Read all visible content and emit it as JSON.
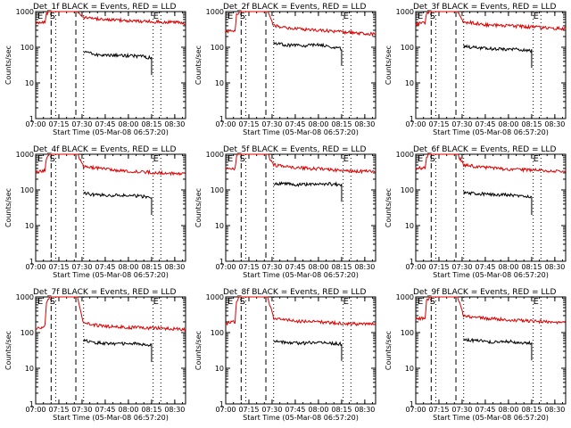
{
  "figure": {
    "background": "#ffffff",
    "axis_color": "#000000"
  },
  "chart_data": [
    {
      "type": "line",
      "title": "Det_1f BLACK = Events, RED = LLD",
      "xlabel": "Start Time (05-Mar-08 06:57:20)",
      "ylabel": "Counts/sec",
      "yscale": "log",
      "ylim": [
        1,
        1000
      ],
      "xlim": [
        "07:00",
        "08:37"
      ],
      "xticks": [
        "07:00",
        "07:15",
        "07:30",
        "07:45",
        "08:00",
        "08:15",
        "08:30"
      ],
      "yticks": [
        "1",
        "10",
        "100",
        "1000"
      ],
      "markers": [
        {
          "label": "E",
          "x": "07:00"
        },
        {
          "label": "S",
          "x": "07:09"
        },
        {
          "label": "E",
          "x": "08:16"
        }
      ],
      "vlines": {
        "dashed": [
          "07:10",
          "07:26"
        ],
        "dotted": [
          "07:13",
          "07:31",
          "08:16",
          "08:21"
        ]
      },
      "series": [
        {
          "name": "Events",
          "color": "#000000",
          "x": [
            "07:31",
            "07:40",
            "07:50",
            "08:00",
            "08:10",
            "08:15"
          ],
          "y": [
            75,
            62,
            60,
            58,
            55,
            50
          ]
        },
        {
          "name": "LLD",
          "color": "#dd0000",
          "x": [
            "07:00",
            "07:06",
            "07:07",
            "07:09",
            "07:10",
            "07:26",
            "07:27",
            "07:31",
            "07:45",
            "08:00",
            "08:15",
            "08:37"
          ],
          "y": [
            480,
            500,
            850,
            1000,
            1000,
            1000,
            1000,
            700,
            600,
            560,
            520,
            480
          ]
        }
      ]
    },
    {
      "type": "line",
      "title": "Det_2f BLACK = Events, RED = LLD",
      "xlabel": "Start Time (05-Mar-08 06:57:20)",
      "ylabel": "Counts/sec",
      "yscale": "log",
      "ylim": [
        1,
        1000
      ],
      "xlim": [
        "07:00",
        "08:37"
      ],
      "xticks": [
        "07:00",
        "07:15",
        "07:30",
        "07:45",
        "08:00",
        "08:15",
        "08:30"
      ],
      "yticks": [
        "1",
        "10",
        "100",
        "1000"
      ],
      "markers": [
        {
          "label": "E",
          "x": "07:00"
        },
        {
          "label": "S",
          "x": "07:09"
        },
        {
          "label": "E",
          "x": "08:16"
        }
      ],
      "vlines": {
        "dashed": [
          "07:10",
          "07:26"
        ],
        "dotted": [
          "07:13",
          "07:31",
          "08:16",
          "08:21"
        ]
      },
      "series": [
        {
          "name": "Events",
          "color": "#000000",
          "x": [
            "07:31",
            "07:40",
            "07:50",
            "08:00",
            "08:10",
            "08:15"
          ],
          "y": [
            130,
            115,
            108,
            120,
            100,
            90
          ]
        },
        {
          "name": "LLD",
          "color": "#dd0000",
          "x": [
            "07:00",
            "07:06",
            "07:07",
            "07:09",
            "07:10",
            "07:26",
            "07:27",
            "07:31",
            "07:45",
            "08:00",
            "08:15",
            "08:37"
          ],
          "y": [
            280,
            300,
            800,
            1000,
            1000,
            1000,
            1000,
            400,
            330,
            300,
            270,
            230
          ]
        }
      ]
    },
    {
      "type": "line",
      "title": "Det_3f BLACK = Events, RED = LLD",
      "xlabel": "Start Time (05-Mar-08 06:57:20)",
      "ylabel": "Counts/sec",
      "yscale": "log",
      "ylim": [
        1,
        1000
      ],
      "xlim": [
        "07:00",
        "08:37"
      ],
      "xticks": [
        "07:00",
        "07:15",
        "07:30",
        "07:45",
        "08:00",
        "08:15",
        "08:30"
      ],
      "yticks": [
        "1",
        "10",
        "100",
        "1000"
      ],
      "markers": [
        {
          "label": "E",
          "x": "07:00"
        },
        {
          "label": "S",
          "x": "07:09"
        },
        {
          "label": "E",
          "x": "08:16"
        }
      ],
      "vlines": {
        "dashed": [
          "07:10",
          "07:26"
        ],
        "dotted": [
          "07:13",
          "07:31",
          "08:16",
          "08:21"
        ]
      },
      "series": [
        {
          "name": "Events",
          "color": "#000000",
          "x": [
            "07:31",
            "07:40",
            "07:50",
            "08:00",
            "08:10",
            "08:15"
          ],
          "y": [
            110,
            95,
            90,
            88,
            85,
            80
          ]
        },
        {
          "name": "LLD",
          "color": "#dd0000",
          "x": [
            "07:00",
            "07:06",
            "07:07",
            "07:09",
            "07:10",
            "07:26",
            "07:27",
            "07:31",
            "07:45",
            "08:00",
            "08:15",
            "08:37"
          ],
          "y": [
            450,
            480,
            850,
            1000,
            1000,
            1000,
            1000,
            520,
            430,
            400,
            370,
            330
          ]
        }
      ]
    },
    {
      "type": "line",
      "title": "Det_4f BLACK = Events, RED = LLD",
      "xlabel": "Start Time (05-Mar-08 06:57:20)",
      "ylabel": "Counts/sec",
      "yscale": "log",
      "ylim": [
        1,
        1000
      ],
      "xlim": [
        "07:00",
        "08:37"
      ],
      "xticks": [
        "07:00",
        "07:15",
        "07:30",
        "07:45",
        "08:00",
        "08:15",
        "08:30"
      ],
      "yticks": [
        "1",
        "10",
        "100",
        "1000"
      ],
      "markers": [
        {
          "label": "E",
          "x": "07:00"
        },
        {
          "label": "S",
          "x": "07:09"
        },
        {
          "label": "E",
          "x": "08:16"
        }
      ],
      "vlines": {
        "dashed": [
          "07:10",
          "07:26"
        ],
        "dotted": [
          "07:13",
          "07:31",
          "08:16",
          "08:21"
        ]
      },
      "series": [
        {
          "name": "Events",
          "color": "#000000",
          "x": [
            "07:31",
            "07:40",
            "07:50",
            "08:00",
            "08:10",
            "08:15"
          ],
          "y": [
            80,
            72,
            70,
            72,
            65,
            60
          ]
        },
        {
          "name": "LLD",
          "color": "#dd0000",
          "x": [
            "07:00",
            "07:06",
            "07:07",
            "07:09",
            "07:10",
            "07:26",
            "07:27",
            "07:31",
            "07:45",
            "08:00",
            "08:15",
            "08:37"
          ],
          "y": [
            320,
            350,
            800,
            1000,
            1000,
            1000,
            1000,
            450,
            380,
            340,
            310,
            280
          ]
        }
      ]
    },
    {
      "type": "line",
      "title": "Det_5f BLACK = Events, RED = LLD",
      "xlabel": "Start Time (05-Mar-08 06:57:20)",
      "ylabel": "Counts/sec",
      "yscale": "log",
      "ylim": [
        1,
        1000
      ],
      "xlim": [
        "07:00",
        "08:37"
      ],
      "xticks": [
        "07:00",
        "07:15",
        "07:30",
        "07:45",
        "08:00",
        "08:15",
        "08:30"
      ],
      "yticks": [
        "1",
        "10",
        "100",
        "1000"
      ],
      "markers": [
        {
          "label": "E",
          "x": "07:00"
        },
        {
          "label": "S",
          "x": "07:09"
        },
        {
          "label": "E",
          "x": "08:16"
        }
      ],
      "vlines": {
        "dashed": [
          "07:10",
          "07:26"
        ],
        "dotted": [
          "07:13",
          "07:31",
          "08:16",
          "08:21"
        ]
      },
      "series": [
        {
          "name": "Events",
          "color": "#000000",
          "x": [
            "07:31",
            "07:40",
            "07:50",
            "08:00",
            "08:10",
            "08:15"
          ],
          "y": [
            150,
            145,
            140,
            150,
            145,
            140
          ]
        },
        {
          "name": "LLD",
          "color": "#dd0000",
          "x": [
            "07:00",
            "07:06",
            "07:07",
            "07:09",
            "07:10",
            "07:26",
            "07:27",
            "07:31",
            "07:45",
            "08:00",
            "08:15",
            "08:37"
          ],
          "y": [
            380,
            400,
            850,
            1000,
            1000,
            1000,
            1000,
            500,
            420,
            390,
            350,
            320
          ]
        }
      ]
    },
    {
      "type": "line",
      "title": "Det_6f BLACK = Events, RED = LLD",
      "xlabel": "Start Time (05-Mar-08 06:57:20)",
      "ylabel": "Counts/sec",
      "yscale": "log",
      "ylim": [
        1,
        1000
      ],
      "xlim": [
        "07:00",
        "08:37"
      ],
      "xticks": [
        "07:00",
        "07:15",
        "07:30",
        "07:45",
        "08:00",
        "08:15",
        "08:30"
      ],
      "yticks": [
        "1",
        "10",
        "100",
        "1000"
      ],
      "markers": [
        {
          "label": "E",
          "x": "07:00"
        },
        {
          "label": "S",
          "x": "07:09"
        },
        {
          "label": "E",
          "x": "08:16"
        }
      ],
      "vlines": {
        "dashed": [
          "07:10",
          "07:26"
        ],
        "dotted": [
          "07:13",
          "07:31",
          "08:16",
          "08:21"
        ]
      },
      "series": [
        {
          "name": "Events",
          "color": "#000000",
          "x": [
            "07:31",
            "07:40",
            "07:50",
            "08:00",
            "08:10",
            "08:15"
          ],
          "y": [
            85,
            78,
            75,
            72,
            68,
            60
          ]
        },
        {
          "name": "LLD",
          "color": "#dd0000",
          "x": [
            "07:00",
            "07:06",
            "07:07",
            "07:09",
            "07:10",
            "07:26",
            "07:27",
            "07:31",
            "07:45",
            "08:00",
            "08:15",
            "08:37"
          ],
          "y": [
            400,
            420,
            850,
            1000,
            1000,
            1000,
            1000,
            500,
            420,
            380,
            360,
            330
          ]
        }
      ]
    },
    {
      "type": "line",
      "title": "Det_7f BLACK = Events, RED = LLD",
      "xlabel": "Start Time (05-Mar-08 06:57:20)",
      "ylabel": "Counts/sec",
      "yscale": "log",
      "ylim": [
        1,
        1000
      ],
      "xlim": [
        "07:00",
        "08:37"
      ],
      "xticks": [
        "07:00",
        "07:15",
        "07:30",
        "07:45",
        "08:00",
        "08:15",
        "08:30"
      ],
      "yticks": [
        "1",
        "10",
        "100",
        "1000"
      ],
      "markers": [
        {
          "label": "E",
          "x": "07:00"
        },
        {
          "label": "S",
          "x": "07:09"
        },
        {
          "label": "E",
          "x": "08:16"
        }
      ],
      "vlines": {
        "dashed": [
          "07:10",
          "07:26"
        ],
        "dotted": [
          "07:13",
          "07:31",
          "08:16",
          "08:21"
        ]
      },
      "series": [
        {
          "name": "Events",
          "color": "#000000",
          "x": [
            "07:31",
            "07:40",
            "07:50",
            "08:00",
            "08:10",
            "08:15"
          ],
          "y": [
            60,
            52,
            48,
            50,
            46,
            45
          ]
        },
        {
          "name": "LLD",
          "color": "#dd0000",
          "x": [
            "07:00",
            "07:06",
            "07:07",
            "07:09",
            "07:10",
            "07:26",
            "07:27",
            "07:31",
            "07:45",
            "08:00",
            "08:15",
            "08:37"
          ],
          "y": [
            130,
            150,
            700,
            1000,
            1000,
            1000,
            1000,
            180,
            150,
            140,
            135,
            125
          ]
        }
      ]
    },
    {
      "type": "line",
      "title": "Det_8f BLACK = Events, RED = LLD",
      "xlabel": "Start Time (05-Mar-08 06:57:20)",
      "ylabel": "Counts/sec",
      "yscale": "log",
      "ylim": [
        1,
        1000
      ],
      "xlim": [
        "07:00",
        "08:37"
      ],
      "xticks": [
        "07:00",
        "07:15",
        "07:30",
        "07:45",
        "08:00",
        "08:15",
        "08:30"
      ],
      "yticks": [
        "1",
        "10",
        "100",
        "1000"
      ],
      "markers": [
        {
          "label": "E",
          "x": "07:00"
        },
        {
          "label": "S",
          "x": "07:09"
        },
        {
          "label": "E",
          "x": "08:16"
        }
      ],
      "vlines": {
        "dashed": [
          "07:10",
          "07:26"
        ],
        "dotted": [
          "07:13",
          "07:31",
          "08:16",
          "08:21"
        ]
      },
      "series": [
        {
          "name": "Events",
          "color": "#000000",
          "x": [
            "07:31",
            "07:40",
            "07:50",
            "08:00",
            "08:10",
            "08:15"
          ],
          "y": [
            60,
            52,
            50,
            55,
            50,
            48
          ]
        },
        {
          "name": "LLD",
          "color": "#dd0000",
          "x": [
            "07:00",
            "07:06",
            "07:07",
            "07:09",
            "07:10",
            "07:26",
            "07:27",
            "07:31",
            "07:45",
            "08:00",
            "08:15",
            "08:37"
          ],
          "y": [
            180,
            200,
            750,
            1000,
            1000,
            1000,
            1000,
            260,
            210,
            200,
            180,
            170
          ]
        }
      ]
    },
    {
      "type": "line",
      "title": "Det_9f BLACK = Events, RED = LLD",
      "xlabel": "Start Time (05-Mar-08 06:57:20)",
      "ylabel": "Counts/sec",
      "yscale": "log",
      "ylim": [
        1,
        1000
      ],
      "xlim": [
        "07:00",
        "08:37"
      ],
      "xticks": [
        "07:00",
        "07:15",
        "07:30",
        "07:45",
        "08:00",
        "08:15",
        "08:30"
      ],
      "yticks": [
        "1",
        "10",
        "100",
        "1000"
      ],
      "markers": [
        {
          "label": "E",
          "x": "07:00"
        },
        {
          "label": "S",
          "x": "07:09"
        },
        {
          "label": "E",
          "x": "08:16"
        }
      ],
      "vlines": {
        "dashed": [
          "07:10",
          "07:26"
        ],
        "dotted": [
          "07:13",
          "07:31",
          "08:16",
          "08:21"
        ]
      },
      "series": [
        {
          "name": "Events",
          "color": "#000000",
          "x": [
            "07:31",
            "07:40",
            "07:50",
            "08:00",
            "08:10",
            "08:15"
          ],
          "y": [
            65,
            58,
            55,
            56,
            52,
            50
          ]
        },
        {
          "name": "LLD",
          "color": "#dd0000",
          "x": [
            "07:00",
            "07:06",
            "07:07",
            "07:09",
            "07:10",
            "07:26",
            "07:27",
            "07:31",
            "07:45",
            "08:00",
            "08:15",
            "08:37"
          ],
          "y": [
            240,
            260,
            800,
            1000,
            1000,
            1000,
            1000,
            300,
            250,
            230,
            210,
            190
          ]
        }
      ]
    }
  ]
}
